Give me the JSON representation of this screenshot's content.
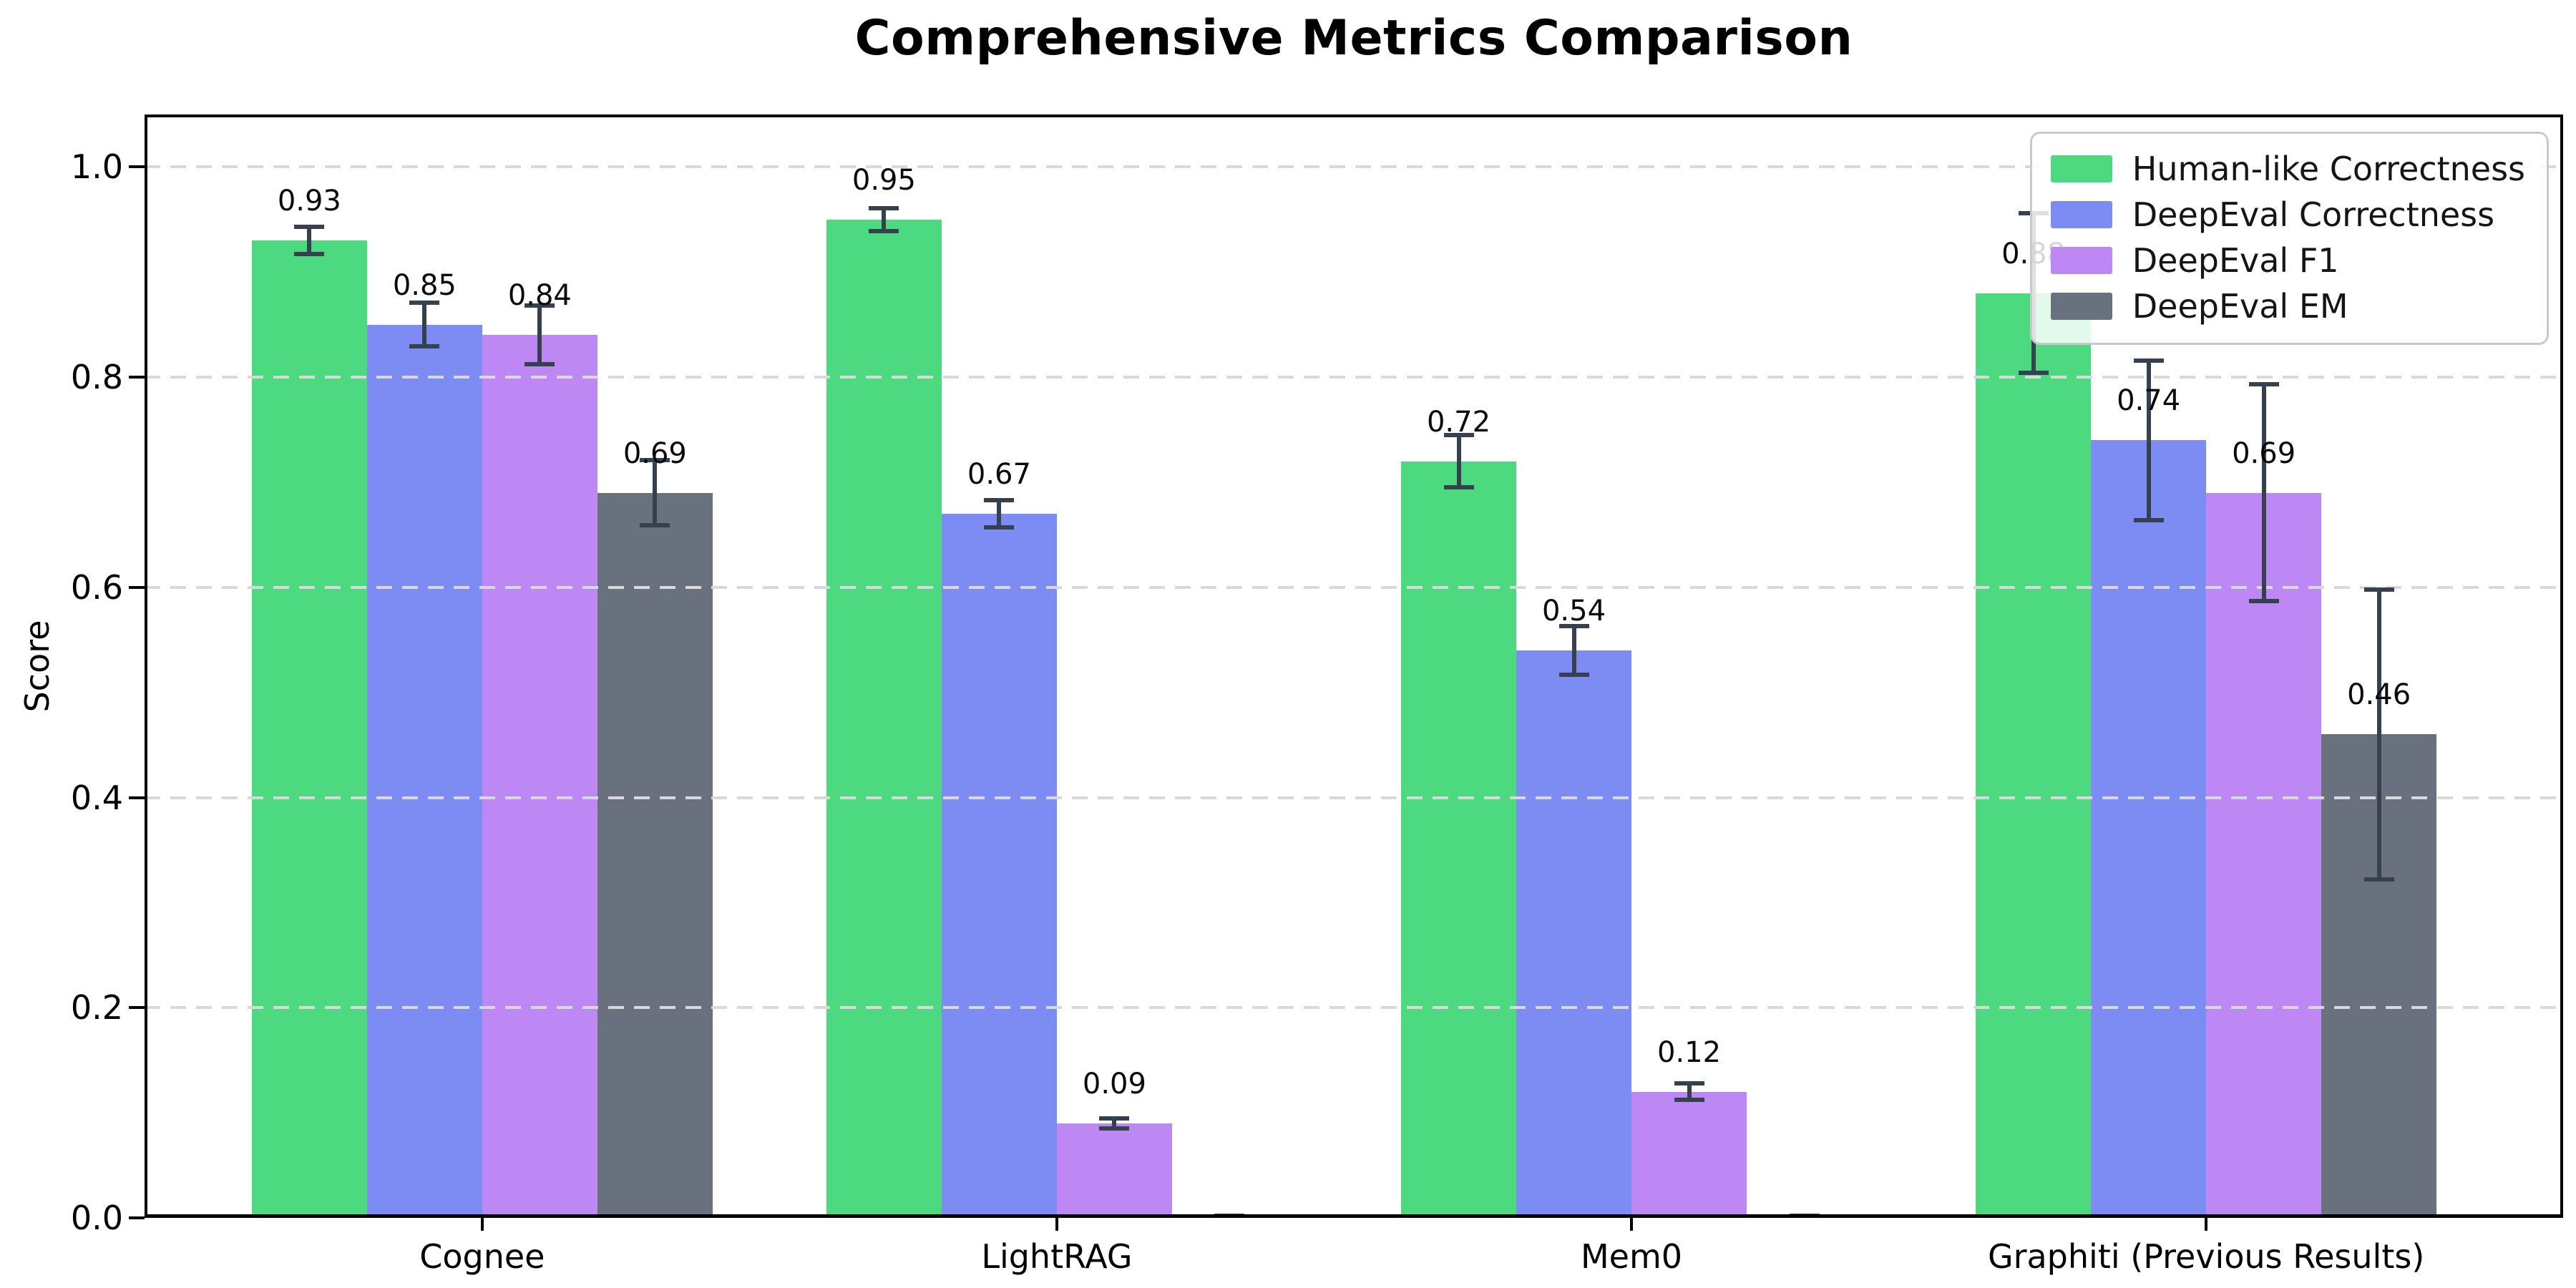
{
  "title": "Comprehensive Metrics Comparison",
  "chart_data": {
    "type": "bar",
    "title": "Comprehensive Metrics Comparison",
    "xlabel": "",
    "ylabel": "Score",
    "categories": [
      "Cognee",
      "LightRAG",
      "Mem0",
      "Graphiti (Previous Results)"
    ],
    "series": [
      {
        "name": "Human-like Correctness",
        "color": "#4dd980",
        "values": [
          0.93,
          0.95,
          0.72,
          0.88
        ],
        "errors": [
          0.015,
          0.013,
          0.027,
          0.078
        ],
        "labels": [
          "0.93",
          "0.95",
          "0.72",
          "0.88"
        ]
      },
      {
        "name": "DeepEval Correctness",
        "color": "#7d8cf2",
        "values": [
          0.85,
          0.67,
          0.54,
          0.74
        ],
        "errors": [
          0.023,
          0.015,
          0.025,
          0.078
        ],
        "labels": [
          "0.85",
          "0.67",
          "0.54",
          "0.74"
        ]
      },
      {
        "name": "DeepEval F1",
        "color": "#bd88f4",
        "values": [
          0.84,
          0.09,
          0.12,
          0.69
        ],
        "errors": [
          0.03,
          0.007,
          0.01,
          0.105
        ],
        "labels": [
          "0.84",
          "0.09",
          "0.12",
          "0.69"
        ]
      },
      {
        "name": "DeepEval EM",
        "color": "#6a717e",
        "values": [
          0.69,
          0.0,
          0.0,
          0.46
        ],
        "errors": [
          0.033,
          0.004,
          0.004,
          0.14
        ],
        "labels": [
          "0.69",
          "",
          "",
          "0.46"
        ]
      }
    ],
    "yticks": [
      0.0,
      0.2,
      0.4,
      0.6,
      0.8,
      1.0
    ],
    "ytick_labels": [
      "0.0",
      "0.2",
      "0.4",
      "0.6",
      "0.8",
      "1.0"
    ],
    "ylim": [
      0,
      1.05
    ],
    "grid": "horizontal-dashed",
    "grid_above_bars": true,
    "legend_position": "upper right",
    "colors": {
      "errorbar": "#36414f",
      "grid": "#d9d9d9",
      "axis": "#000000",
      "background": "#ffffff"
    }
  }
}
